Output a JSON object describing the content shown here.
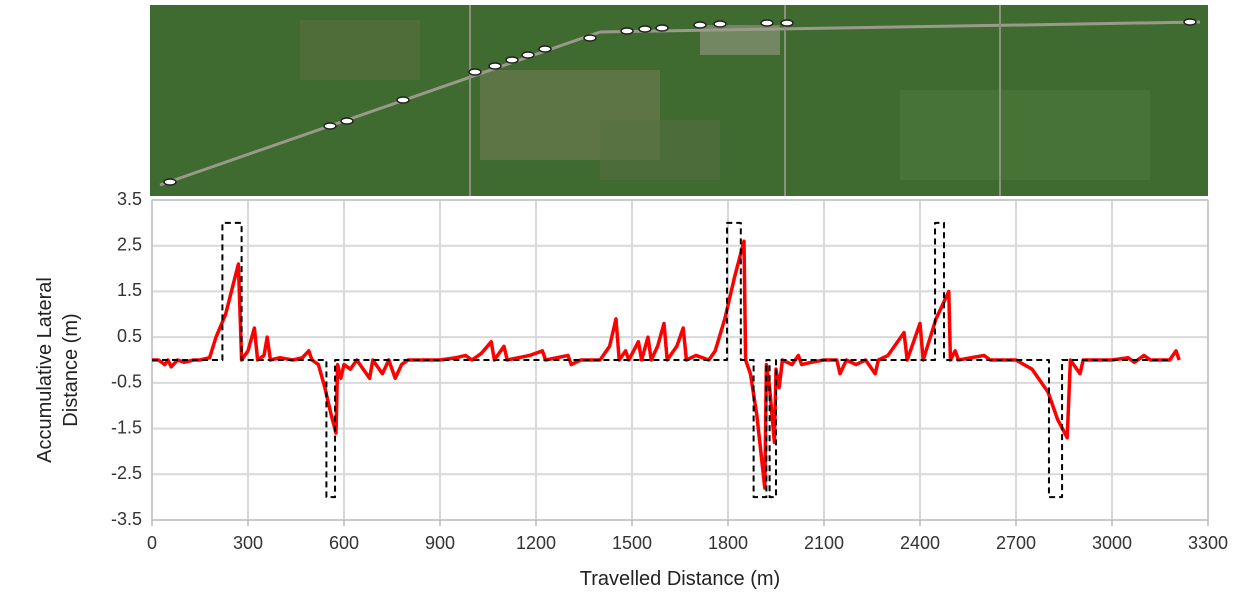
{
  "chart_data": {
    "type": "line",
    "x_label": "Travelled Distance (m)",
    "y_label": "Accumulative Lateral Distance (m)",
    "xlim": [
      0,
      3300
    ],
    "xticks": [
      0,
      300,
      600,
      900,
      1200,
      1500,
      1800,
      2100,
      2400,
      2700,
      3000,
      3300
    ],
    "ylim": [
      -3.5,
      3.5
    ],
    "yticks": [
      3.5,
      2.5,
      1.5,
      0.5,
      -0.5,
      -1.5,
      -2.5,
      -3.5
    ],
    "grid": true,
    "series": [
      {
        "color": "#ff0000",
        "linestyle": "solid",
        "x": [
          0,
          20,
          40,
          50,
          60,
          80,
          100,
          130,
          150,
          180,
          200,
          230,
          270,
          280,
          300,
          320,
          330,
          350,
          360,
          370,
          400,
          440,
          470,
          490,
          500,
          520,
          540,
          560,
          575,
          580,
          590,
          600,
          620,
          640,
          660,
          680,
          690,
          720,
          740,
          760,
          780,
          800,
          900,
          950,
          980,
          1000,
          1030,
          1060,
          1070,
          1100,
          1110,
          1180,
          1220,
          1230,
          1300,
          1310,
          1340,
          1400,
          1430,
          1450,
          1460,
          1480,
          1490,
          1520,
          1530,
          1550,
          1560,
          1580,
          1600,
          1610,
          1640,
          1660,
          1670,
          1700,
          1740,
          1760,
          1790,
          1820,
          1850,
          1855,
          1870,
          1890,
          1915,
          1920,
          1930,
          1945,
          1950,
          1960,
          1970,
          2000,
          2020,
          2030,
          2060,
          2100,
          2140,
          2150,
          2170,
          2200,
          2230,
          2260,
          2270,
          2300,
          2350,
          2360,
          2400,
          2410,
          2450,
          2490,
          2495,
          2510,
          2520,
          2600,
          2620,
          2650,
          2700,
          2750,
          2800,
          2830,
          2860,
          2870,
          2880,
          2900,
          2910,
          2950,
          3000,
          3050,
          3070,
          3100,
          3120,
          3180,
          3200,
          3210
        ],
        "values": [
          0,
          0,
          -0.1,
          0,
          -0.15,
          0,
          -0.05,
          0,
          0,
          0.05,
          0.5,
          1.0,
          2.1,
          0,
          0.2,
          0.7,
          0,
          0.1,
          0.5,
          0,
          0.05,
          0,
          0.05,
          0.2,
          0,
          -0.1,
          -0.6,
          -1.2,
          -1.6,
          -0.1,
          -0.4,
          -0.1,
          -0.2,
          0,
          -0.2,
          -0.4,
          0,
          -0.3,
          0,
          -0.4,
          -0.1,
          0,
          0,
          0.05,
          0.1,
          0,
          0.15,
          0.4,
          0,
          0.3,
          0,
          0.1,
          0.2,
          0,
          0.1,
          -0.1,
          0,
          0,
          0.3,
          0.9,
          0,
          0.2,
          0,
          0.4,
          0,
          0.5,
          0,
          0.3,
          0.8,
          0,
          0.3,
          0.7,
          0,
          0.1,
          0,
          0.2,
          0.9,
          1.8,
          2.6,
          0,
          -0.3,
          -1.2,
          -2.8,
          -0.1,
          -0.6,
          -1.8,
          -0.2,
          -0.6,
          0,
          -0.1,
          0.1,
          -0.1,
          -0.05,
          0,
          0,
          -0.3,
          0,
          -0.1,
          0,
          -0.3,
          0,
          0.1,
          0.6,
          0,
          0.8,
          0,
          0.9,
          1.5,
          0,
          0.2,
          0,
          0.1,
          0,
          0,
          0,
          -0.2,
          -0.7,
          -1.3,
          -1.7,
          0,
          -0.1,
          -0.3,
          0,
          0,
          0,
          0.05,
          -0.05,
          0.1,
          0,
          0,
          0.2,
          0
        ]
      },
      {
        "color": "#000000",
        "linestyle": "dashed",
        "x": [
          0,
          220,
          220,
          280,
          280,
          545,
          545,
          572,
          572,
          1797,
          1797,
          1840,
          1840,
          1880,
          1880,
          1920,
          1920,
          1930,
          1930,
          1950,
          1950,
          2447,
          2447,
          2475,
          2475,
          2803,
          2803,
          2844,
          2844,
          3188
        ],
        "values": [
          0,
          0,
          3,
          3,
          0,
          0,
          -3,
          -3,
          0,
          0,
          3,
          3,
          0,
          0,
          -3,
          -3,
          0,
          0,
          -3,
          -3,
          0,
          0,
          3,
          3,
          0,
          0,
          -3,
          -3,
          0,
          0
        ]
      }
    ]
  }
}
